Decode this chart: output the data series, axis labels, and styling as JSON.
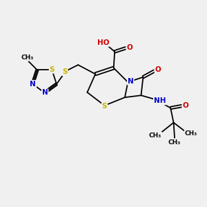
{
  "bg_color": "#f0f0f0",
  "atom_colors": {
    "S": "#c8b400",
    "N": "#0000cc",
    "O": "#cc0000",
    "C": "#000000",
    "H": "#5a8080"
  },
  "bond_color": "#000000",
  "bond_lw": 1.3,
  "figsize": [
    3.0,
    3.0
  ],
  "dpi": 100,
  "xlim": [
    0,
    10
  ],
  "ylim": [
    0,
    10
  ],
  "font_size_atom": 7.5,
  "font_size_small": 6.5
}
